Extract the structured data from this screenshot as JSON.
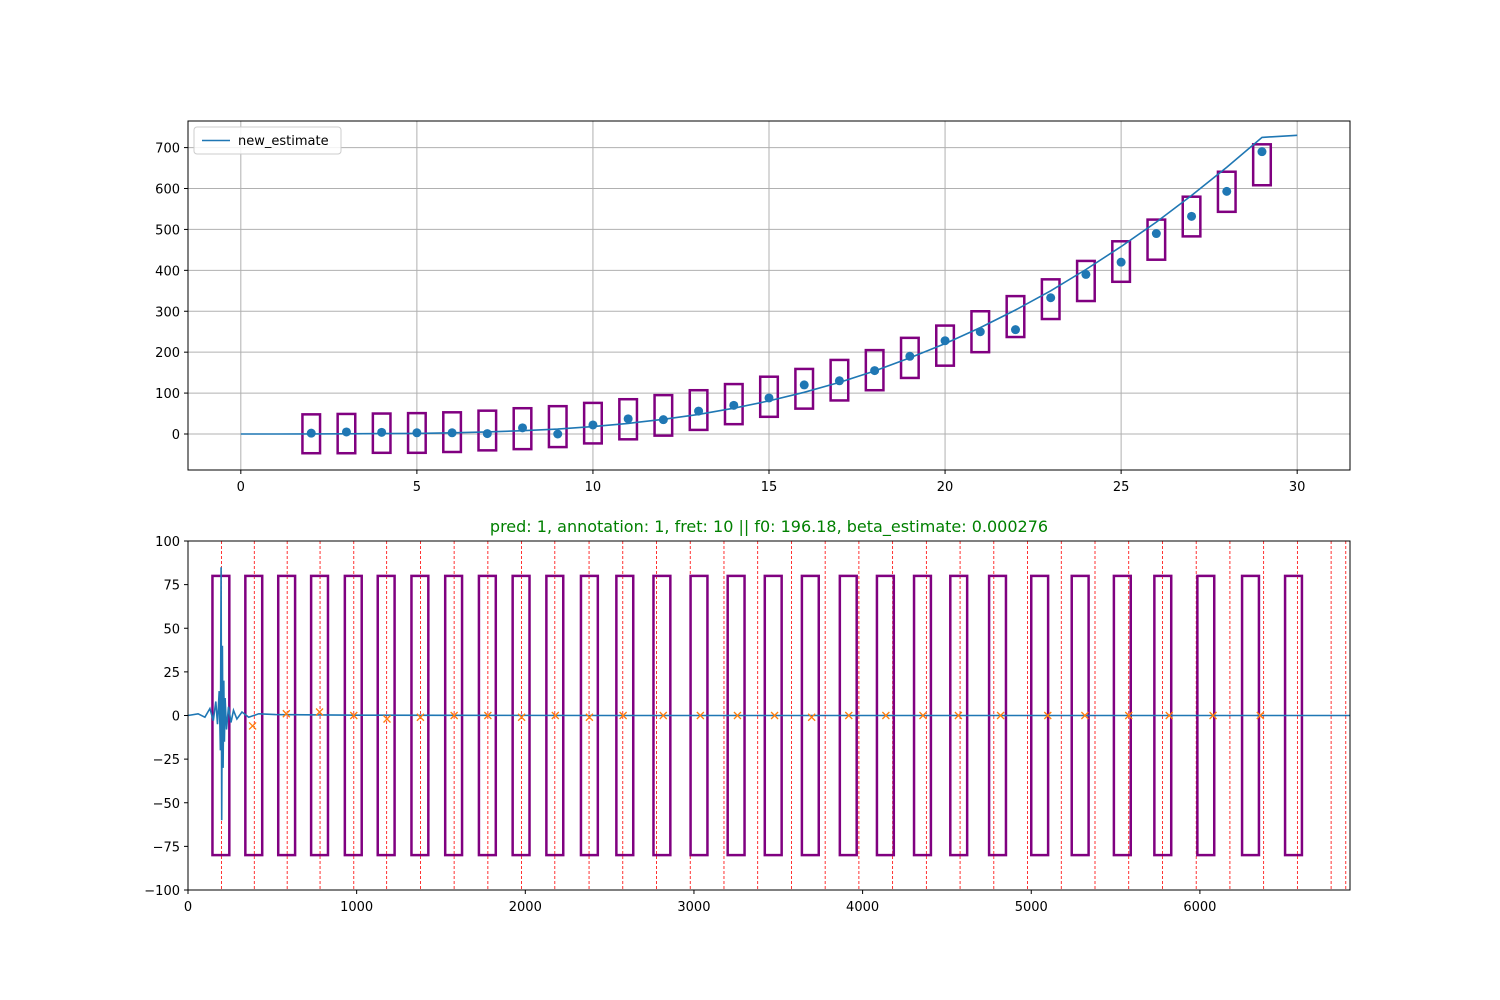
{
  "chart_data": [
    {
      "type": "line",
      "title": "",
      "xlabel": "",
      "ylabel": "",
      "xlim": [
        -1.5,
        31.5
      ],
      "ylim": [
        -88,
        765
      ],
      "grid": true,
      "legend": {
        "placement": "top-left",
        "entries": [
          "new_estimate"
        ]
      },
      "xticks": [
        0,
        5,
        10,
        15,
        20,
        25,
        30
      ],
      "xtick_labels": [
        "0",
        "5",
        "10",
        "15",
        "20",
        "25",
        "30"
      ],
      "yticks": [
        0,
        100,
        200,
        300,
        400,
        500,
        600,
        700
      ],
      "ytick_labels": [
        "0",
        "100",
        "200",
        "300",
        "400",
        "500",
        "600",
        "700"
      ],
      "series": [
        {
          "name": "new_estimate",
          "kind": "line",
          "x": [
            0,
            1,
            2,
            3,
            4,
            5,
            6,
            7,
            8,
            9,
            10,
            11,
            12,
            13,
            14,
            15,
            16,
            17,
            18,
            19,
            20,
            21,
            22,
            23,
            24,
            25,
            26,
            27,
            28,
            29,
            30
          ],
          "values": [
            0,
            0.1,
            0.2,
            0.5,
            1,
            1.5,
            3,
            5,
            8,
            12,
            18,
            26,
            36,
            48,
            63,
            81,
            102,
            126,
            154,
            186,
            221,
            260,
            303,
            350,
            402,
            458,
            518,
            583,
            652,
            725,
            730
          ]
        },
        {
          "kind": "scatter",
          "x": [
            2,
            3,
            4,
            5,
            6,
            7,
            8,
            9,
            10,
            11,
            12,
            13,
            14,
            15,
            16,
            17,
            18,
            19,
            20,
            21,
            22,
            23,
            24,
            25,
            26,
            27,
            28,
            29
          ],
          "values": [
            2,
            5,
            4,
            3,
            3,
            1,
            15,
            0,
            22,
            37,
            35,
            56,
            70,
            88,
            120,
            130,
            155,
            190,
            228,
            250,
            255,
            333,
            390,
            420,
            490,
            532,
            593,
            690
          ]
        }
      ],
      "boxes": {
        "x": [
          2,
          3,
          4,
          5,
          6,
          7,
          8,
          9,
          10,
          11,
          12,
          13,
          14,
          15,
          16,
          17,
          18,
          19,
          20,
          21,
          22,
          23,
          24,
          25,
          26,
          27,
          28,
          29
        ],
        "low": [
          -47,
          -47,
          -46,
          -46,
          -44,
          -40,
          -37,
          -32,
          -23,
          -13,
          -4,
          10,
          24,
          42,
          62,
          82,
          107,
          137,
          167,
          200,
          237,
          281,
          325,
          372,
          426,
          483,
          543,
          608
        ],
        "high": [
          48,
          49,
          50,
          51,
          53,
          57,
          63,
          68,
          76,
          85,
          95,
          107,
          122,
          140,
          159,
          181,
          205,
          235,
          265,
          300,
          337,
          378,
          423,
          471,
          524,
          580,
          641,
          708
        ],
        "color": "#800080"
      },
      "colors": {
        "line": "#1f77b4",
        "points": "#1f77b4",
        "boxes": "#800080",
        "grid": "#b0b0b0"
      }
    },
    {
      "type": "line",
      "title": "pred: 1, annotation: 1, fret: 10 || f0: 196.18, beta_estimate: 0.000276",
      "title_color": "#008000",
      "xlabel": "",
      "ylabel": "",
      "xlim": [
        0,
        6890
      ],
      "ylim": [
        -100,
        100
      ],
      "grid": false,
      "xticks": [
        0,
        1000,
        2000,
        3000,
        4000,
        5000,
        6000
      ],
      "xtick_labels": [
        "0",
        "1000",
        "2000",
        "3000",
        "4000",
        "5000",
        "6000"
      ],
      "yticks": [
        -100,
        -75,
        -50,
        -25,
        0,
        25,
        50,
        75,
        100
      ],
      "ytick_labels": [
        "−100",
        "−75",
        "−50",
        "−25",
        "0",
        "25",
        "50",
        "75",
        "100"
      ],
      "series": [
        {
          "kind": "waveform",
          "x": [
            0,
            60,
            100,
            130,
            150,
            165,
            175,
            185,
            192,
            196,
            200,
            204,
            208,
            212,
            216,
            220,
            228,
            240,
            255,
            270,
            290,
            320,
            360,
            420,
            520,
            700,
            1000,
            1500,
            2500,
            4000,
            6890
          ],
          "values": [
            0,
            1,
            -1,
            4,
            -3,
            8,
            -5,
            14,
            -20,
            85,
            -60,
            40,
            -30,
            20,
            -15,
            10,
            -8,
            5,
            -4,
            3,
            -2,
            2,
            -1,
            1,
            0.5,
            0.4,
            0.2,
            0.1,
            0,
            0,
            0
          ]
        },
        {
          "kind": "markers",
          "x": [
            383,
            583,
            780,
            983,
            1180,
            1378,
            1578,
            1778,
            1978,
            2178,
            2380,
            2580,
            2818,
            3038,
            3258,
            3478,
            3698,
            3918,
            4138,
            4358,
            4568,
            4818,
            5098,
            5318,
            5578,
            5818,
            6078,
            6358
          ],
          "values": [
            -6,
            1,
            2,
            0,
            -2,
            -1,
            0,
            0,
            -1,
            0,
            -1,
            0,
            0,
            0,
            0,
            0,
            -1,
            0,
            0,
            0,
            0,
            0,
            0,
            0,
            0,
            0,
            0,
            0
          ],
          "color": "#ff7f0e"
        }
      ],
      "boxes": {
        "x1": [
          145,
          340,
          535,
          730,
          930,
          1125,
          1325,
          1525,
          1725,
          1925,
          2125,
          2330,
          2540,
          2760,
          2980,
          3200,
          3420,
          3640,
          3865,
          4085,
          4305,
          4520,
          4750,
          5000,
          5240,
          5490,
          5730,
          5985,
          6250,
          6505
        ],
        "x2": [
          245,
          440,
          635,
          830,
          1030,
          1225,
          1425,
          1625,
          1825,
          2025,
          2225,
          2430,
          2640,
          2860,
          3080,
          3300,
          3520,
          3740,
          3965,
          4185,
          4405,
          4620,
          4850,
          5100,
          5340,
          5590,
          5830,
          6085,
          6350,
          6605
        ],
        "low": -80,
        "high": 80,
        "color": "#800080"
      },
      "vlines": {
        "x": [
          198,
          393,
          588,
          783,
          983,
          1178,
          1378,
          1578,
          1778,
          1978,
          2175,
          2378,
          2578,
          2778,
          2978,
          3178,
          3378,
          3578,
          3778,
          3978,
          4178,
          4378,
          4578,
          4778,
          4978,
          5178,
          5378,
          5578,
          5778,
          5978,
          6178,
          6378,
          6578,
          6778,
          6865
        ],
        "color": "#ff0000",
        "style": "dashed"
      },
      "colors": {
        "waveform": "#1f77b4",
        "markers": "#ff7f0e",
        "boxes": "#800080",
        "vlines": "#ff0000"
      }
    }
  ]
}
